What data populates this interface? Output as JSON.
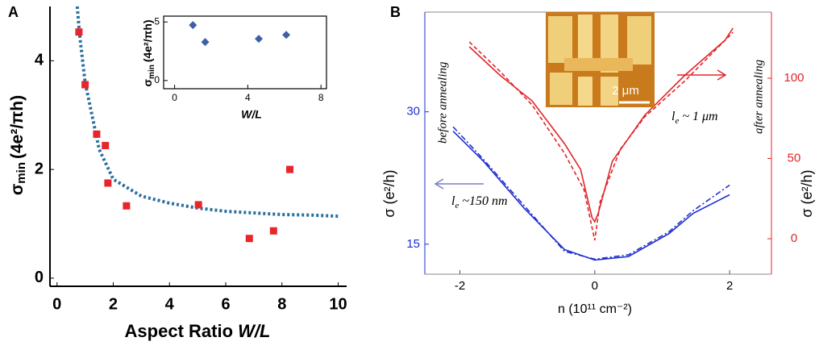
{
  "chart_data": [
    {
      "type": "scatter",
      "panel_label": "A",
      "xlabel": "Aspect Ratio",
      "xlabel_italic": "W/L",
      "ylabel_symbol": "σ",
      "ylabel_sub": "min",
      "ylabel_unit": "(4e²/πh)",
      "x": [
        0.78,
        1.0,
        1.41,
        1.72,
        1.81,
        2.47,
        5.03,
        6.84,
        7.7,
        8.28
      ],
      "values": [
        4.53,
        3.56,
        2.65,
        2.44,
        1.75,
        1.33,
        1.35,
        0.73,
        0.87,
        2.0
      ],
      "color": "#e8262a",
      "fit": {
        "x": [
          0.72,
          0.8,
          1.0,
          1.5,
          2,
          3,
          4,
          5,
          6,
          7,
          8,
          9,
          10
        ],
        "values": [
          5.0,
          4.5,
          3.6,
          2.37,
          1.82,
          1.51,
          1.38,
          1.29,
          1.23,
          1.2,
          1.17,
          1.16,
          1.14
        ],
        "color": "#2a6f9e"
      },
      "xlim": [
        -0.25,
        10.3
      ],
      "ylim": [
        -0.15,
        5.0
      ],
      "xticks": [
        0,
        2,
        4,
        6,
        8,
        10
      ],
      "yticks": [
        0,
        2,
        4
      ]
    },
    {
      "type": "scatter",
      "xlabel": "W/L",
      "ylabel_symbol": "σ",
      "ylabel_sub": "min",
      "ylabel_unit": "(4e²/πh)",
      "x": [
        1.0,
        1.67,
        4.6,
        6.1
      ],
      "values": [
        4.73,
        3.29,
        3.56,
        3.9
      ],
      "color": "#3f5fa8",
      "xlim": [
        -0.6,
        8.3
      ],
      "ylim": [
        -0.7,
        5.5
      ],
      "xticks": [
        0,
        4,
        8
      ],
      "yticks": [
        0,
        5
      ]
    },
    {
      "type": "line",
      "panel_label": "B",
      "xlabel": "n (10¹¹ cm⁻²)",
      "ylabel": "σ (e²/h)",
      "y2label": "σ (e²/h)",
      "xlim": [
        -2.52,
        2.62
      ],
      "ylim": [
        11.6,
        41.3
      ],
      "y2lim": [
        -22.1,
        141.2
      ],
      "xticks": [
        -2,
        0,
        2
      ],
      "yticks": [
        15,
        30
      ],
      "y2ticks": [
        0,
        50,
        100
      ],
      "left_color": "#1f2fd0",
      "right_color": "#e0262a",
      "series": [
        {
          "x": [
            -2.1,
            -1.65,
            -1.05,
            -0.45,
            0,
            0.5,
            1.1,
            1.46,
            2.0
          ],
          "values": [
            27.8,
            24.4,
            19.1,
            14.4,
            13.2,
            13.6,
            16.2,
            18.5,
            20.6
          ],
          "color": "#1f2fd0",
          "style": "solid"
        },
        {
          "x": [
            -2.1,
            -1.65,
            -1.05,
            -0.45,
            0,
            0.5,
            1.1,
            1.46,
            2.0
          ],
          "values": [
            28.3,
            24.6,
            19.4,
            14.2,
            13.3,
            13.8,
            16.4,
            18.8,
            21.7
          ],
          "color": "#1f2fd0",
          "style": "dashdot"
        },
        {
          "x": [
            -1.86,
            -1.41,
            -0.93,
            -0.45,
            -0.21,
            -0.04,
            0,
            0.05,
            0.26,
            0.74,
            1.34,
            1.93,
            2.05
          ],
          "values": [
            119.6,
            102,
            85.9,
            59.3,
            43.2,
            13.1,
            10.6,
            15.6,
            48.2,
            76.9,
            102,
            123.6,
            131.2
          ],
          "color": "#e0262a",
          "style": "solid",
          "axis": "y2"
        },
        {
          "x": [
            -1.86,
            -1.41,
            -0.93,
            -0.45,
            -0.16,
            0,
            0.08,
            0.38,
            0.74,
            1.34,
            2.05
          ],
          "values": [
            122.6,
            104.5,
            83.4,
            53.3,
            30.7,
            -1,
            23.1,
            55.8,
            75.9,
            98.5,
            128.6
          ],
          "color": "#e0262a",
          "style": "dashed",
          "axis": "y2"
        }
      ],
      "annotations": {
        "before": "before annealing",
        "after": "after annealing",
        "le_blue": {
          "symbol": "l",
          "sub": "e",
          "text": "~150 nm"
        },
        "le_red": {
          "symbol": "l",
          "sub": "e",
          "text": "~ 1 μm"
        },
        "scale_bar": "2 μm"
      }
    }
  ]
}
